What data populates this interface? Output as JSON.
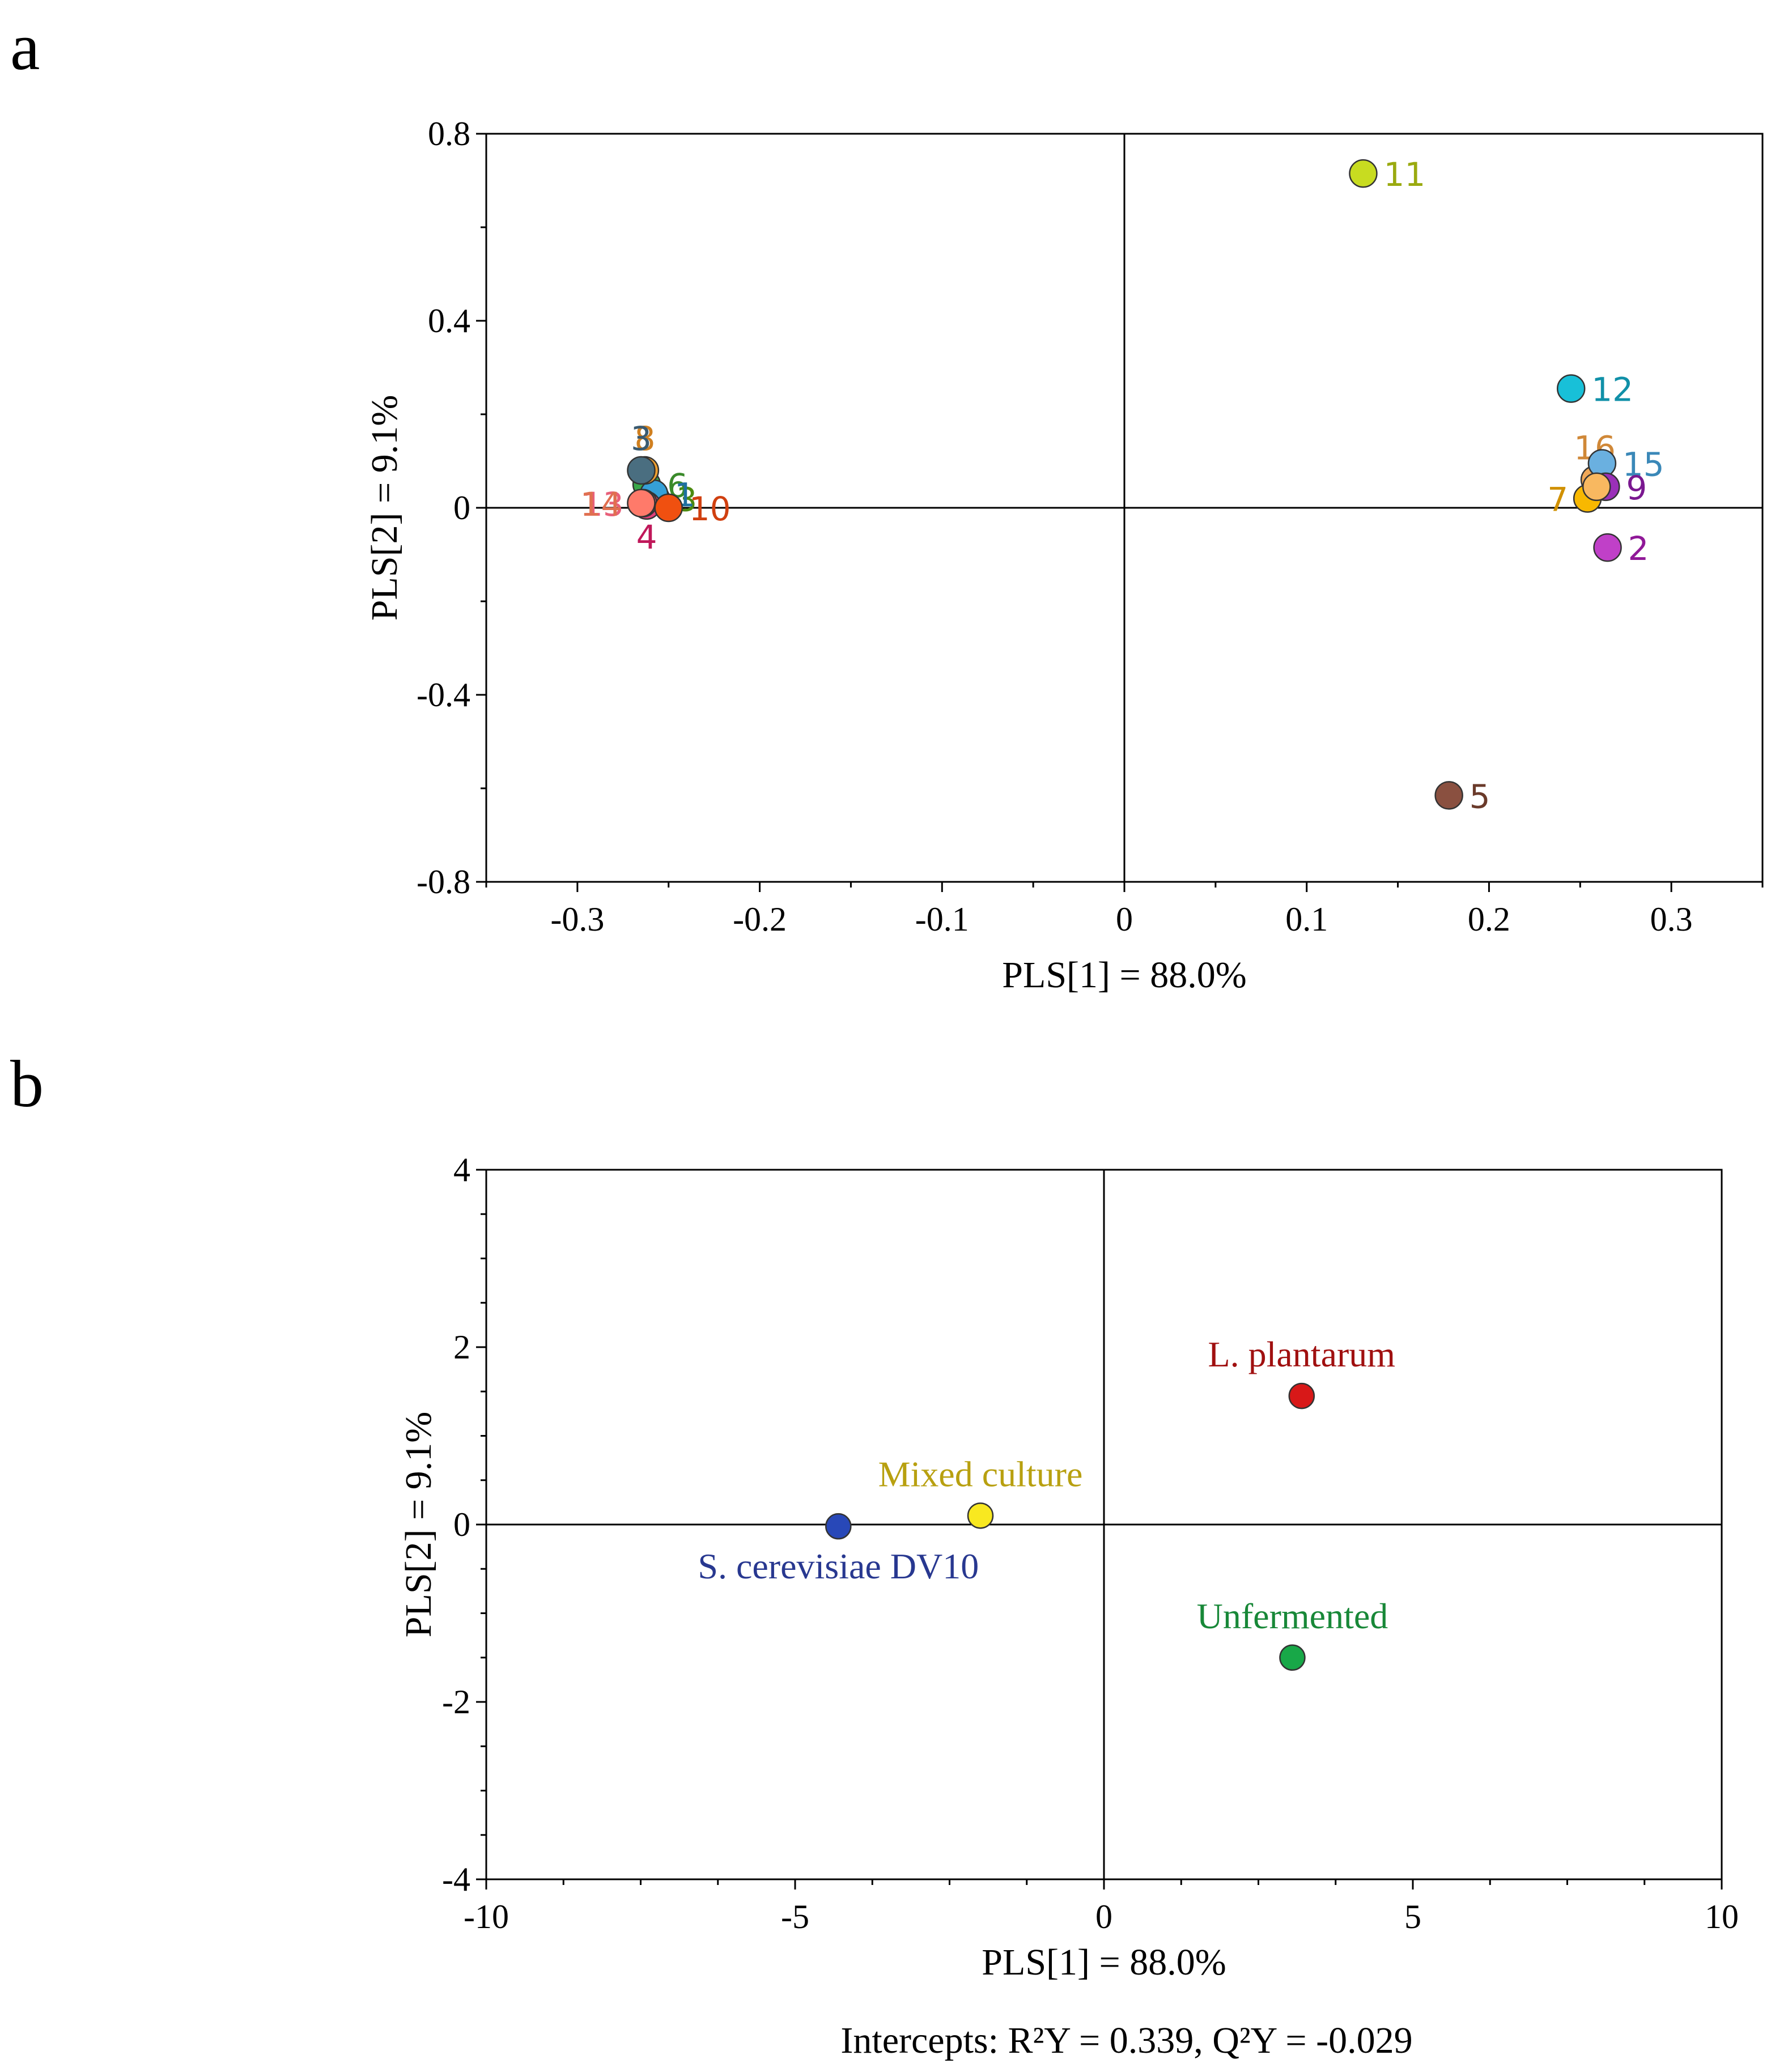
{
  "panels": {
    "a": {
      "letter": "a"
    },
    "b": {
      "letter": "b"
    }
  },
  "chart_data": [
    {
      "type": "scatter",
      "panel": "a",
      "title": "",
      "xlabel": "PLS[1] = 88.0%",
      "ylabel": "PLS[2] = 9.1%",
      "xlim": [
        -0.35,
        0.35
      ],
      "ylim": [
        -0.8,
        0.8
      ],
      "xticks": [
        -0.3,
        -0.2,
        -0.1,
        0,
        0.1,
        0.2,
        0.3
      ],
      "xtick_labels": [
        "-0.3",
        "-0.2",
        "-0.1",
        "0",
        "0.1",
        "0.2",
        "0.3"
      ],
      "yticks": [
        -0.8,
        -0.4,
        0,
        0.4,
        0.8
      ],
      "ytick_labels": [
        "-0.8",
        "-0.4",
        "0",
        "0.4",
        "0.8"
      ],
      "grid": false,
      "points": [
        {
          "label": "3",
          "x": -0.257,
          "y": 0.02,
          "color": "#8fbc3a",
          "label_color": "#4c8a10",
          "label_pos": "right"
        },
        {
          "label": "6",
          "x": -0.262,
          "y": 0.05,
          "color": "#3aa84a",
          "label_color": "#3a8a2a",
          "label_pos": "right"
        },
        {
          "label": "1",
          "x": -0.258,
          "y": 0.03,
          "color": "#35a0d8",
          "label_color": "#1f6fa0",
          "label_pos": "right"
        },
        {
          "label": "4",
          "x": -0.262,
          "y": 0.005,
          "color": "#e0407a",
          "label_color": "#c0185a",
          "label_pos": "below"
        },
        {
          "label": "13",
          "x": -0.264,
          "y": 0.01,
          "color": "#f0607a",
          "label_color": "#e8607a",
          "label_pos": "left"
        },
        {
          "label": "14",
          "x": -0.265,
          "y": 0.01,
          "color": "#ff7a6a",
          "label_color": "#e07050",
          "label_pos": "left"
        },
        {
          "label": "10",
          "x": -0.25,
          "y": 0.0,
          "color": "#f05010",
          "label_color": "#d04010",
          "label_pos": "right"
        },
        {
          "label": "8",
          "x": -0.263,
          "y": 0.08,
          "color": "#f0a030",
          "label_color": "#d08020",
          "label_pos": "above"
        },
        {
          "label": "3",
          "x": -0.265,
          "y": 0.08,
          "color": "#4a6e80",
          "label_color": "#3a5a70",
          "label_pos": "above"
        },
        {
          "label": "11",
          "x": 0.131,
          "y": 0.715,
          "color": "#c8dc20",
          "label_color": "#9aaa10",
          "label_pos": "right"
        },
        {
          "label": "12",
          "x": 0.245,
          "y": 0.255,
          "color": "#18c0d8",
          "label_color": "#1090a8",
          "label_pos": "right"
        },
        {
          "label": "16",
          "x": 0.258,
          "y": 0.06,
          "color": "#f0a858",
          "label_color": "#d08838",
          "label_pos": "above"
        },
        {
          "label": "15",
          "x": 0.262,
          "y": 0.095,
          "color": "#6ab0e0",
          "label_color": "#3a88b8",
          "label_pos": "right"
        },
        {
          "label": "9",
          "x": 0.264,
          "y": 0.045,
          "color": "#9a30b8",
          "label_color": "#7a1890",
          "label_pos": "right"
        },
        {
          "label": "7",
          "x": 0.254,
          "y": 0.02,
          "color": "#f8b800",
          "label_color": "#d09000",
          "label_pos": "left"
        },
        {
          "label": "",
          "x": 0.259,
          "y": 0.045,
          "color": "#f8b860",
          "label_color": "#d09040",
          "label_pos": "none"
        },
        {
          "label": "2",
          "x": 0.265,
          "y": -0.085,
          "color": "#c040c8",
          "label_color": "#901898",
          "label_pos": "right"
        },
        {
          "label": "5",
          "x": 0.178,
          "y": -0.615,
          "color": "#8a5040",
          "label_color": "#6a3a2a",
          "label_pos": "right"
        }
      ]
    },
    {
      "type": "scatter",
      "panel": "b",
      "title": "",
      "xlabel": "PLS[1] = 88.0%",
      "ylabel": "PLS[2] = 9.1%",
      "xlim": [
        -10,
        10
      ],
      "ylim": [
        -4,
        4
      ],
      "xticks": [
        -10,
        -5,
        0,
        5,
        10
      ],
      "xtick_labels": [
        "-10",
        "-5",
        "0",
        "5",
        "10"
      ],
      "yticks": [
        -4,
        -2,
        0,
        2,
        4
      ],
      "ytick_labels": [
        "-4",
        "-2",
        "0",
        "2",
        "4"
      ],
      "grid": false,
      "points": [
        {
          "label": "L. plantarum",
          "x": 3.2,
          "y": 1.45,
          "color": "#d81818",
          "label_color": "#a01010",
          "label_pos": "above"
        },
        {
          "label": "Mixed culture",
          "x": -2.0,
          "y": 0.1,
          "color": "#f8e820",
          "label_color": "#b8a010",
          "label_pos": "above"
        },
        {
          "label": "S. cerevisiae DV10",
          "x": -4.3,
          "y": -0.02,
          "color": "#2848b8",
          "label_color": "#283890",
          "label_pos": "below"
        },
        {
          "label": "Unfermented",
          "x": 3.05,
          "y": -1.5,
          "color": "#18a848",
          "label_color": "#188838",
          "label_pos": "above"
        }
      ],
      "annotation": "Intercepts: R²Y = 0.339, Q²Y = -0.029"
    }
  ]
}
